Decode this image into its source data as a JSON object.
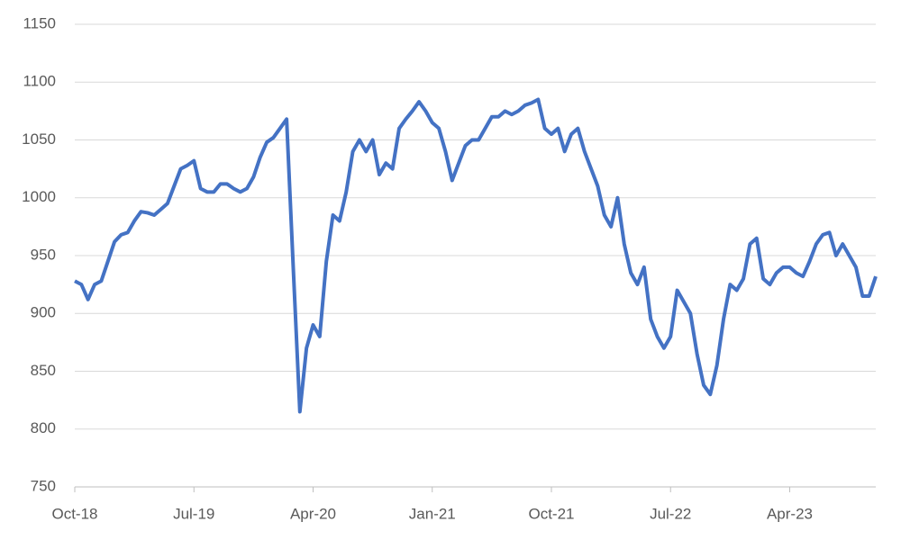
{
  "chart_data": {
    "type": "line",
    "categories": [
      "Oct-18",
      null,
      null,
      null,
      null,
      null,
      null,
      null,
      null,
      null,
      null,
      null,
      null,
      null,
      null,
      null,
      null,
      null,
      "Jul-19",
      null,
      null,
      null,
      null,
      null,
      null,
      null,
      null,
      null,
      null,
      null,
      null,
      null,
      null,
      null,
      null,
      null,
      "Apr-20",
      null,
      null,
      null,
      null,
      null,
      null,
      null,
      null,
      null,
      null,
      null,
      null,
      null,
      null,
      null,
      null,
      null,
      "Jan-21",
      null,
      null,
      null,
      null,
      null,
      null,
      null,
      null,
      null,
      null,
      null,
      null,
      null,
      null,
      null,
      null,
      null,
      "Oct-21",
      null,
      null,
      null,
      null,
      null,
      null,
      null,
      null,
      null,
      null,
      null,
      null,
      null,
      null,
      null,
      null,
      null,
      "Jul-22",
      null,
      null,
      null,
      null,
      null,
      null,
      null,
      null,
      null,
      null,
      null,
      null,
      null,
      null,
      null,
      null,
      null,
      "Apr-23",
      null,
      null,
      null,
      null,
      null,
      null,
      null,
      null,
      null,
      null,
      null,
      null,
      null
    ],
    "series": [
      {
        "color": "#4472c4",
        "values": [
          928,
          925,
          912,
          925,
          928,
          945,
          962,
          968,
          970,
          980,
          988,
          987,
          985,
          990,
          995,
          1010,
          1025,
          1028,
          1032,
          1008,
          1005,
          1005,
          1012,
          1012,
          1008,
          1005,
          1008,
          1018,
          1035,
          1048,
          1052,
          1060,
          1068,
          940,
          815,
          870,
          890,
          880,
          945,
          985,
          980,
          1005,
          1040,
          1050,
          1040,
          1050,
          1020,
          1030,
          1025,
          1060,
          1068,
          1075,
          1083,
          1075,
          1065,
          1060,
          1040,
          1015,
          1030,
          1045,
          1050,
          1050,
          1060,
          1070,
          1070,
          1075,
          1072,
          1075,
          1080,
          1082,
          1085,
          1060,
          1055,
          1060,
          1040,
          1055,
          1060,
          1040,
          1025,
          1010,
          985,
          975,
          1000,
          960,
          935,
          925,
          940,
          895,
          880,
          870,
          880,
          920,
          910,
          900,
          865,
          838,
          830,
          855,
          895,
          925,
          920,
          930,
          960,
          965,
          930,
          925,
          935,
          940,
          940,
          935,
          932,
          945,
          960,
          968,
          970,
          950,
          960,
          950,
          940,
          915,
          915,
          932
        ]
      }
    ],
    "ylim": [
      750,
      1150
    ],
    "yticks": [
      750,
      800,
      850,
      900,
      950,
      1000,
      1050,
      1100,
      1150
    ],
    "grid": true
  }
}
